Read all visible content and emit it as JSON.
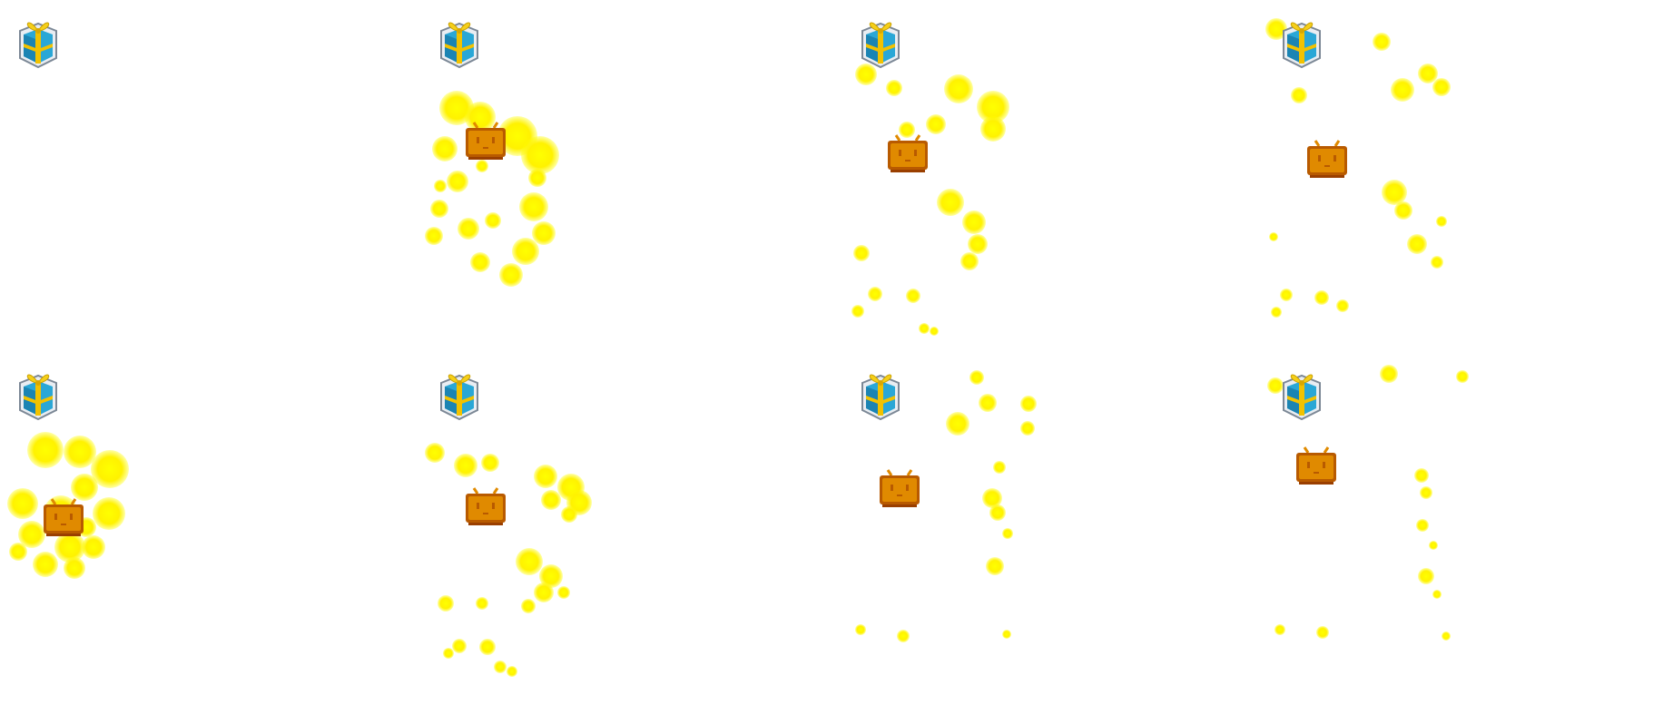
{
  "sprite_sheet": {
    "frames": [
      {
        "id": 1,
        "tv_visible": false
      },
      {
        "id": 2,
        "tv_visible": true
      },
      {
        "id": 3,
        "tv_visible": true
      },
      {
        "id": 4,
        "tv_visible": true
      },
      {
        "id": 5,
        "tv_visible": true
      },
      {
        "id": 6,
        "tv_visible": true
      },
      {
        "id": 7,
        "tv_visible": true
      },
      {
        "id": 8,
        "tv_visible": true
      }
    ],
    "icons": {
      "gift": "gift-box-icon",
      "tv": "tv-mascot-icon"
    },
    "colors": {
      "background": "#ffffff",
      "sparkle": "#ffff00",
      "gift_box": "#2aa7d6",
      "gift_ribbon": "#f2c200",
      "tv_body": "#e08a00",
      "tv_face": "#b85a00"
    }
  }
}
